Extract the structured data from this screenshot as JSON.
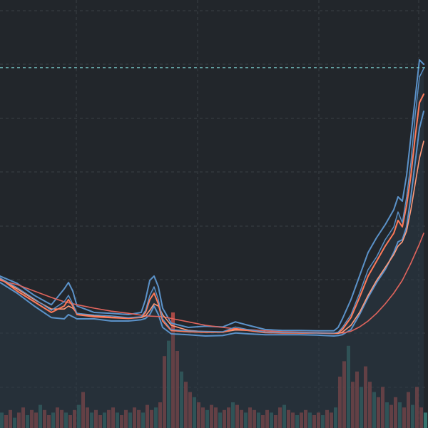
{
  "colors": {
    "background": "#22262b",
    "grid": "#3b4046",
    "price_line": "#5b92c9",
    "area_fill": "#2a3845",
    "upper_band": "#5b92c9",
    "lower_band": "#5b92c9",
    "fast_ma": "#ff7a59",
    "mid_ma": "#ff9a7a",
    "slow_ma": "#e0645c",
    "volume_up": "#3f8f86",
    "volume_down": "#d7564f",
    "reference_line": "#7dd3d3"
  },
  "chart_data": {
    "type": "line",
    "xlim": [
      0,
      100
    ],
    "ylim": [
      0,
      100
    ],
    "reference_level": 84.2,
    "grid": true,
    "series": [
      {
        "key": "price",
        "values": [
          [
            0,
            35.1
          ],
          [
            4,
            32.8
          ],
          [
            8,
            30.2
          ],
          [
            12,
            27.5
          ],
          [
            15,
            29.5
          ],
          [
            16,
            31.0
          ],
          [
            17,
            29.0
          ],
          [
            18,
            26.8
          ],
          [
            22,
            26.4
          ],
          [
            26,
            26.2
          ],
          [
            30,
            25.8
          ],
          [
            33,
            26.0
          ],
          [
            34,
            27.5
          ],
          [
            35,
            31.0
          ],
          [
            36,
            33.0
          ],
          [
            37,
            30.0
          ],
          [
            38,
            25.5
          ],
          [
            40,
            23.0
          ],
          [
            44,
            22.7
          ],
          [
            48,
            22.6
          ],
          [
            52,
            22.5
          ],
          [
            55,
            23.6
          ],
          [
            58,
            23.0
          ],
          [
            62,
            22.4
          ],
          [
            66,
            22.3
          ],
          [
            70,
            22.3
          ],
          [
            74,
            22.2
          ],
          [
            78,
            22.2
          ],
          [
            79,
            22.4
          ],
          [
            80,
            23.5
          ],
          [
            82,
            26.5
          ],
          [
            84,
            31.5
          ],
          [
            86,
            37.0
          ],
          [
            88,
            40.0
          ],
          [
            90,
            44.0
          ],
          [
            92,
            47.0
          ],
          [
            93,
            50.5
          ],
          [
            94,
            48.0
          ],
          [
            95,
            54.0
          ],
          [
            96,
            62.0
          ],
          [
            97,
            73.0
          ],
          [
            98,
            82.0
          ],
          [
            99,
            84.0
          ]
        ]
      },
      {
        "key": "upper_band",
        "values": [
          [
            0,
            35.5
          ],
          [
            4,
            33.8
          ],
          [
            8,
            31.0
          ],
          [
            12,
            28.8
          ],
          [
            15,
            32.5
          ],
          [
            16,
            34.0
          ],
          [
            17,
            32.0
          ],
          [
            18,
            28.5
          ],
          [
            22,
            27.0
          ],
          [
            26,
            26.8
          ],
          [
            30,
            26.5
          ],
          [
            33,
            27.0
          ],
          [
            34,
            30.0
          ],
          [
            35,
            34.5
          ],
          [
            36,
            35.5
          ],
          [
            37,
            33.0
          ],
          [
            38,
            28.0
          ],
          [
            40,
            24.5
          ],
          [
            44,
            23.5
          ],
          [
            48,
            23.8
          ],
          [
            52,
            23.6
          ],
          [
            55,
            24.8
          ],
          [
            58,
            24.0
          ],
          [
            62,
            23.0
          ],
          [
            66,
            22.8
          ],
          [
            70,
            22.8
          ],
          [
            74,
            22.7
          ],
          [
            78,
            22.7
          ],
          [
            79,
            23.5
          ],
          [
            80,
            25.5
          ],
          [
            82,
            30.0
          ],
          [
            84,
            35.5
          ],
          [
            86,
            41.0
          ],
          [
            88,
            44.5
          ],
          [
            90,
            47.5
          ],
          [
            92,
            51.0
          ],
          [
            93,
            54.0
          ],
          [
            94,
            53.0
          ],
          [
            95,
            59.0
          ],
          [
            96,
            68.0
          ],
          [
            97,
            77.0
          ],
          [
            98,
            86.0
          ],
          [
            99,
            85.0
          ]
        ]
      },
      {
        "key": "lower_band",
        "values": [
          [
            0,
            34.0
          ],
          [
            4,
            31.5
          ],
          [
            8,
            28.5
          ],
          [
            12,
            25.8
          ],
          [
            15,
            25.5
          ],
          [
            16,
            26.5
          ],
          [
            17,
            26.0
          ],
          [
            18,
            25.5
          ],
          [
            22,
            25.5
          ],
          [
            26,
            25.0
          ],
          [
            30,
            25.0
          ],
          [
            33,
            25.3
          ],
          [
            34,
            25.6
          ],
          [
            35,
            26.5
          ],
          [
            36,
            28.5
          ],
          [
            37,
            26.5
          ],
          [
            38,
            23.5
          ],
          [
            40,
            22.0
          ],
          [
            44,
            21.8
          ],
          [
            48,
            21.5
          ],
          [
            52,
            21.6
          ],
          [
            55,
            22.2
          ],
          [
            58,
            22.0
          ],
          [
            62,
            21.8
          ],
          [
            66,
            21.8
          ],
          [
            70,
            21.8
          ],
          [
            74,
            21.7
          ],
          [
            78,
            21.5
          ],
          [
            79,
            21.6
          ],
          [
            80,
            21.8
          ],
          [
            82,
            23.0
          ],
          [
            84,
            26.5
          ],
          [
            86,
            30.5
          ],
          [
            88,
            34.0
          ],
          [
            90,
            37.0
          ],
          [
            92,
            41.0
          ],
          [
            93,
            43.5
          ],
          [
            94,
            44.0
          ],
          [
            95,
            47.0
          ],
          [
            96,
            54.0
          ],
          [
            97,
            62.0
          ],
          [
            98,
            70.0
          ],
          [
            99,
            74.0
          ]
        ]
      },
      {
        "key": "fast_ma",
        "values": [
          [
            0,
            35.0
          ],
          [
            4,
            32.0
          ],
          [
            8,
            29.5
          ],
          [
            12,
            27.0
          ],
          [
            15,
            28.5
          ],
          [
            16,
            30.0
          ],
          [
            17,
            28.5
          ],
          [
            18,
            26.5
          ],
          [
            22,
            26.0
          ],
          [
            26,
            25.8
          ],
          [
            30,
            25.6
          ],
          [
            33,
            25.9
          ],
          [
            34,
            27.0
          ],
          [
            35,
            30.0
          ],
          [
            36,
            31.5
          ],
          [
            37,
            29.0
          ],
          [
            38,
            25.0
          ],
          [
            40,
            22.8
          ],
          [
            44,
            22.5
          ],
          [
            48,
            22.4
          ],
          [
            52,
            22.4
          ],
          [
            55,
            23.2
          ],
          [
            58,
            22.8
          ],
          [
            62,
            22.3
          ],
          [
            66,
            22.2
          ],
          [
            70,
            22.2
          ],
          [
            74,
            22.2
          ],
          [
            78,
            22.1
          ],
          [
            79,
            22.3
          ],
          [
            80,
            23.0
          ],
          [
            82,
            25.8
          ],
          [
            84,
            30.5
          ],
          [
            86,
            35.5
          ],
          [
            88,
            39.0
          ],
          [
            90,
            42.5
          ],
          [
            92,
            45.5
          ],
          [
            93,
            48.5
          ],
          [
            94,
            47.0
          ],
          [
            95,
            52.0
          ],
          [
            96,
            59.0
          ],
          [
            97,
            68.0
          ],
          [
            98,
            76.0
          ],
          [
            99,
            78.0
          ]
        ]
      },
      {
        "key": "mid_ma",
        "values": [
          [
            0,
            34.8
          ],
          [
            4,
            32.5
          ],
          [
            8,
            30.0
          ],
          [
            12,
            27.8
          ],
          [
            15,
            27.8
          ],
          [
            16,
            28.5
          ],
          [
            17,
            28.0
          ],
          [
            18,
            26.8
          ],
          [
            22,
            26.2
          ],
          [
            26,
            25.9
          ],
          [
            30,
            25.7
          ],
          [
            33,
            25.8
          ],
          [
            34,
            26.2
          ],
          [
            35,
            27.5
          ],
          [
            36,
            29.0
          ],
          [
            37,
            28.5
          ],
          [
            38,
            26.5
          ],
          [
            40,
            24.0
          ],
          [
            44,
            22.8
          ],
          [
            48,
            22.5
          ],
          [
            52,
            22.4
          ],
          [
            55,
            22.9
          ],
          [
            58,
            22.8
          ],
          [
            62,
            22.4
          ],
          [
            66,
            22.3
          ],
          [
            70,
            22.2
          ],
          [
            74,
            22.2
          ],
          [
            78,
            22.1
          ],
          [
            79,
            22.1
          ],
          [
            80,
            22.4
          ],
          [
            82,
            24.0
          ],
          [
            84,
            27.0
          ],
          [
            86,
            31.0
          ],
          [
            88,
            34.5
          ],
          [
            90,
            37.5
          ],
          [
            92,
            40.5
          ],
          [
            93,
            42.5
          ],
          [
            94,
            43.5
          ],
          [
            95,
            46.0
          ],
          [
            96,
            51.0
          ],
          [
            97,
            57.0
          ],
          [
            98,
            63.0
          ],
          [
            99,
            67.0
          ]
        ]
      },
      {
        "key": "slow_ma",
        "values": [
          [
            0,
            34.5
          ],
          [
            4,
            33.5
          ],
          [
            8,
            32.0
          ],
          [
            12,
            30.5
          ],
          [
            15,
            29.5
          ],
          [
            18,
            28.8
          ],
          [
            22,
            28.0
          ],
          [
            26,
            27.3
          ],
          [
            30,
            26.8
          ],
          [
            34,
            26.2
          ],
          [
            38,
            26.0
          ],
          [
            40,
            25.6
          ],
          [
            44,
            24.8
          ],
          [
            48,
            24.0
          ],
          [
            52,
            23.5
          ],
          [
            55,
            23.2
          ],
          [
            58,
            23.0
          ],
          [
            62,
            22.7
          ],
          [
            66,
            22.5
          ],
          [
            70,
            22.4
          ],
          [
            74,
            22.3
          ],
          [
            78,
            22.2
          ],
          [
            80,
            22.2
          ],
          [
            82,
            22.6
          ],
          [
            84,
            23.6
          ],
          [
            86,
            25.0
          ],
          [
            88,
            26.8
          ],
          [
            90,
            29.0
          ],
          [
            92,
            31.5
          ],
          [
            94,
            34.5
          ],
          [
            96,
            38.5
          ],
          [
            98,
            43.0
          ],
          [
            99,
            45.5
          ]
        ]
      }
    ],
    "volume": [
      6,
      5,
      7,
      4,
      6,
      8,
      5,
      7,
      6,
      9,
      7,
      5,
      6,
      8,
      7,
      6,
      5,
      7,
      9,
      14,
      8,
      6,
      7,
      5,
      6,
      7,
      8,
      6,
      5,
      7,
      6,
      8,
      7,
      6,
      9,
      7,
      8,
      10,
      28,
      34,
      45,
      30,
      22,
      18,
      14,
      12,
      10,
      8,
      7,
      9,
      8,
      6,
      7,
      8,
      10,
      9,
      7,
      6,
      8,
      7,
      6,
      5,
      7,
      6,
      5,
      8,
      9,
      7,
      6,
      5,
      6,
      7,
      6,
      5,
      6,
      5,
      7,
      6,
      8,
      20,
      26,
      32,
      18,
      22,
      16,
      24,
      18,
      14,
      12,
      16,
      10,
      9,
      12,
      10,
      8,
      14,
      9,
      16,
      8,
      6
    ]
  }
}
